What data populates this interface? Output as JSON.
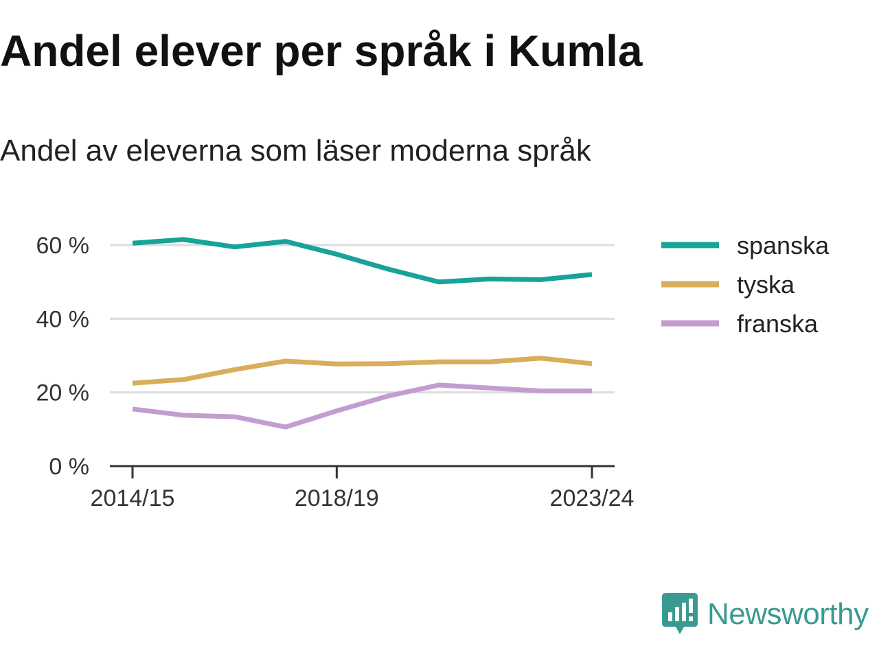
{
  "chart_data": {
    "type": "line",
    "title": "Andel elever per språk i Kumla",
    "subtitle": "Andel av eleverna som läser moderna språk",
    "x": [
      "2014/15",
      "2015/16",
      "2016/17",
      "2017/18",
      "2018/19",
      "2019/20",
      "2020/21",
      "2021/22",
      "2022/23",
      "2023/24"
    ],
    "x_tick_labels": [
      "2014/15",
      "2018/19",
      "2023/24"
    ],
    "y_ticks": [
      0,
      20,
      40,
      60
    ],
    "y_tick_labels": [
      "0 %",
      "20 %",
      "40 %",
      "60 %"
    ],
    "ylim": [
      0,
      60
    ],
    "grid": "horizontal",
    "legend": "right",
    "series": [
      {
        "name": "spanska",
        "color": "#17a398",
        "values": [
          60.5,
          61.5,
          59.5,
          61,
          57.5,
          53.5,
          50,
          50.8,
          50.6,
          52
        ]
      },
      {
        "name": "tyska",
        "color": "#d9ad5b",
        "values": [
          22.5,
          23.5,
          26.2,
          28.5,
          27.7,
          27.8,
          28.3,
          28.3,
          29.3,
          27.8
        ]
      },
      {
        "name": "franska",
        "color": "#c39dd0",
        "values": [
          15.5,
          13.8,
          13.4,
          10.6,
          15,
          19,
          22,
          21.2,
          20.4,
          20.4
        ]
      }
    ]
  },
  "brand": {
    "name": "Newsworthy",
    "logo_icon": "newsworthy-logo-icon",
    "color": "#3a9a92"
  }
}
